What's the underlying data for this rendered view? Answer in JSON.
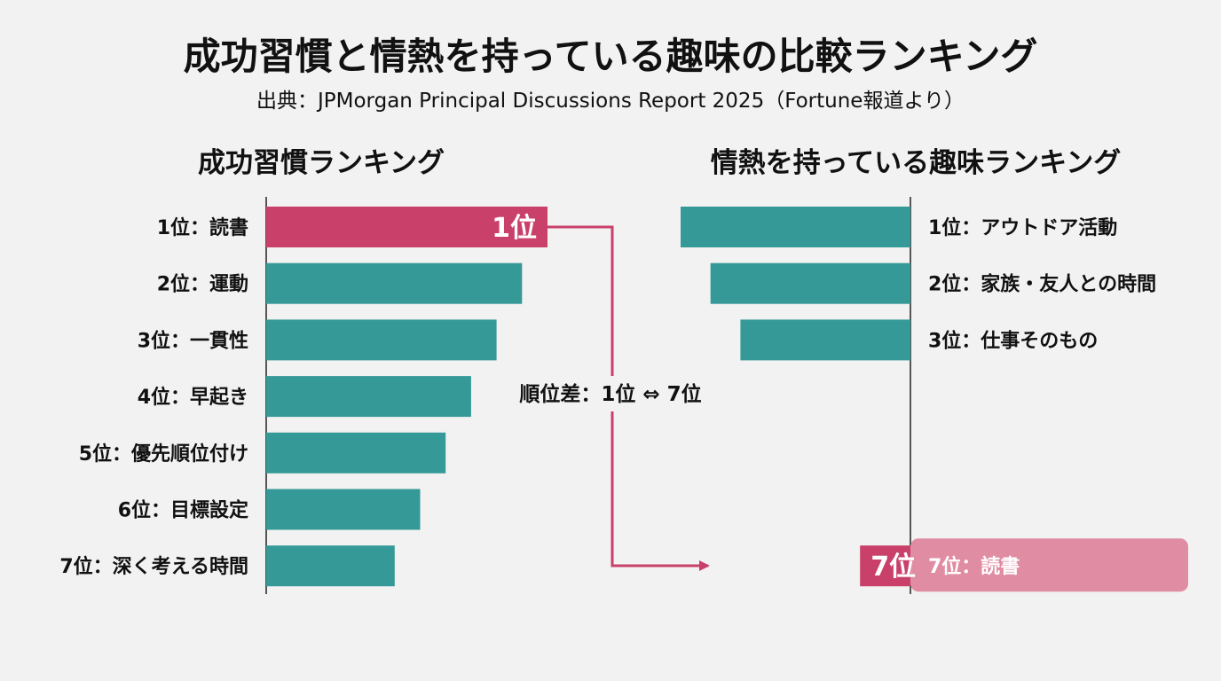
{
  "title": "成功習慣と情熱を持っている趣味の比較ランキング",
  "subtitle": "出典：JPMorgan Principal Discussions Report 2025（Fortune報道より）",
  "colors": {
    "teal": "#359a97",
    "pink": "#c9406a",
    "pink_light": "#e08ca3",
    "background": "#f2f2f2",
    "text": "#111111"
  },
  "chart_data": [
    {
      "type": "bar",
      "orientation": "horizontal",
      "title": "成功習慣ランキング",
      "categories": [
        "1位：読書",
        "2位：運動",
        "3位：一貫性",
        "4位：早起き",
        "5位：優先順位付け",
        "6位：目標設定",
        "7位：深く考える時間"
      ],
      "values": [
        1,
        2,
        3,
        4,
        5,
        6,
        7
      ],
      "highlight": "1位：読書",
      "highlight_label": "1位"
    },
    {
      "type": "bar",
      "orientation": "horizontal",
      "direction": "right-to-left",
      "title": "情熱を持っている趣味ランキング",
      "categories": [
        "1位：アウトドア活動",
        "2位：家族・友人との時間",
        "3位：仕事そのもの",
        "7位：読書"
      ],
      "values": [
        1,
        2,
        3,
        7
      ],
      "highlight": "7位：読書",
      "highlight_label": "7位"
    }
  ],
  "annotation": "順位差：1位 ⇔ 7位"
}
